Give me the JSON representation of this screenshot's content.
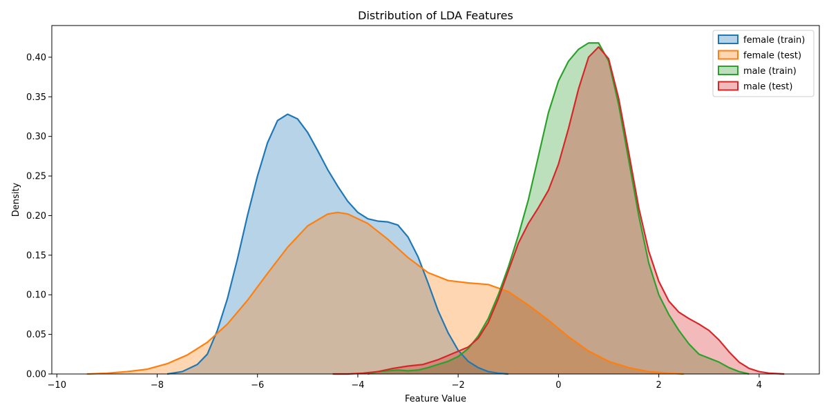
{
  "chart_data": {
    "type": "area",
    "title": "Distribution of LDA Features",
    "xlabel": "Feature Value",
    "ylabel": "Density",
    "xlim": [
      -10.1,
      5.2
    ],
    "ylim": [
      0,
      0.44
    ],
    "x_ticks": [
      -10,
      -8,
      -6,
      -4,
      -2,
      0,
      2,
      4
    ],
    "y_ticks": [
      0.0,
      0.05,
      0.1,
      0.15,
      0.2,
      0.25,
      0.3,
      0.35,
      0.4
    ],
    "grid": false,
    "legend_position": "top-right",
    "series": [
      {
        "name": "female (train)",
        "color": "#1f77b4",
        "fill_opacity": 0.32,
        "points": [
          [
            -7.8,
            0.0
          ],
          [
            -7.5,
            0.003
          ],
          [
            -7.2,
            0.012
          ],
          [
            -7.0,
            0.025
          ],
          [
            -6.8,
            0.055
          ],
          [
            -6.6,
            0.095
          ],
          [
            -6.4,
            0.145
          ],
          [
            -6.2,
            0.2
          ],
          [
            -6.0,
            0.25
          ],
          [
            -5.8,
            0.292
          ],
          [
            -5.6,
            0.32
          ],
          [
            -5.4,
            0.328
          ],
          [
            -5.2,
            0.322
          ],
          [
            -5.0,
            0.305
          ],
          [
            -4.8,
            0.282
          ],
          [
            -4.6,
            0.258
          ],
          [
            -4.4,
            0.237
          ],
          [
            -4.2,
            0.218
          ],
          [
            -4.0,
            0.204
          ],
          [
            -3.8,
            0.196
          ],
          [
            -3.6,
            0.193
          ],
          [
            -3.4,
            0.192
          ],
          [
            -3.2,
            0.188
          ],
          [
            -3.0,
            0.173
          ],
          [
            -2.8,
            0.148
          ],
          [
            -2.6,
            0.115
          ],
          [
            -2.4,
            0.08
          ],
          [
            -2.2,
            0.052
          ],
          [
            -2.0,
            0.03
          ],
          [
            -1.8,
            0.016
          ],
          [
            -1.6,
            0.008
          ],
          [
            -1.4,
            0.003
          ],
          [
            -1.2,
            0.001
          ],
          [
            -1.0,
            0.0
          ]
        ]
      },
      {
        "name": "female (test)",
        "color": "#ff7f0e",
        "fill_opacity": 0.32,
        "points": [
          [
            -9.4,
            0.0
          ],
          [
            -9.0,
            0.001
          ],
          [
            -8.6,
            0.003
          ],
          [
            -8.2,
            0.006
          ],
          [
            -7.8,
            0.013
          ],
          [
            -7.4,
            0.024
          ],
          [
            -7.0,
            0.04
          ],
          [
            -6.6,
            0.063
          ],
          [
            -6.2,
            0.093
          ],
          [
            -5.8,
            0.127
          ],
          [
            -5.4,
            0.16
          ],
          [
            -5.0,
            0.187
          ],
          [
            -4.6,
            0.202
          ],
          [
            -4.4,
            0.204
          ],
          [
            -4.2,
            0.202
          ],
          [
            -3.8,
            0.19
          ],
          [
            -3.4,
            0.17
          ],
          [
            -3.0,
            0.147
          ],
          [
            -2.6,
            0.128
          ],
          [
            -2.2,
            0.118
          ],
          [
            -1.8,
            0.115
          ],
          [
            -1.4,
            0.113
          ],
          [
            -1.0,
            0.104
          ],
          [
            -0.6,
            0.087
          ],
          [
            -0.2,
            0.068
          ],
          [
            0.2,
            0.047
          ],
          [
            0.6,
            0.029
          ],
          [
            1.0,
            0.016
          ],
          [
            1.4,
            0.008
          ],
          [
            1.8,
            0.003
          ],
          [
            2.2,
            0.001
          ],
          [
            2.5,
            0.0
          ]
        ]
      },
      {
        "name": "male (train)",
        "color": "#2ca02c",
        "fill_opacity": 0.32,
        "points": [
          [
            -3.8,
            0.0
          ],
          [
            -3.6,
            0.003
          ],
          [
            -3.4,
            0.004
          ],
          [
            -3.2,
            0.005
          ],
          [
            -3.0,
            0.004
          ],
          [
            -2.8,
            0.005
          ],
          [
            -2.6,
            0.008
          ],
          [
            -2.4,
            0.012
          ],
          [
            -2.2,
            0.016
          ],
          [
            -2.0,
            0.022
          ],
          [
            -1.8,
            0.032
          ],
          [
            -1.6,
            0.048
          ],
          [
            -1.4,
            0.07
          ],
          [
            -1.2,
            0.1
          ],
          [
            -1.0,
            0.135
          ],
          [
            -0.8,
            0.175
          ],
          [
            -0.6,
            0.22
          ],
          [
            -0.4,
            0.275
          ],
          [
            -0.2,
            0.33
          ],
          [
            0.0,
            0.37
          ],
          [
            0.2,
            0.395
          ],
          [
            0.4,
            0.41
          ],
          [
            0.6,
            0.418
          ],
          [
            0.8,
            0.418
          ],
          [
            1.0,
            0.395
          ],
          [
            1.2,
            0.34
          ],
          [
            1.4,
            0.27
          ],
          [
            1.6,
            0.2
          ],
          [
            1.8,
            0.14
          ],
          [
            2.0,
            0.1
          ],
          [
            2.2,
            0.075
          ],
          [
            2.4,
            0.055
          ],
          [
            2.6,
            0.038
          ],
          [
            2.8,
            0.025
          ],
          [
            3.0,
            0.02
          ],
          [
            3.2,
            0.015
          ],
          [
            3.4,
            0.008
          ],
          [
            3.6,
            0.003
          ],
          [
            3.8,
            0.0
          ]
        ]
      },
      {
        "name": "male (test)",
        "color": "#d62728",
        "fill_opacity": 0.32,
        "points": [
          [
            -4.5,
            0.0
          ],
          [
            -4.2,
            0.0
          ],
          [
            -3.9,
            0.001
          ],
          [
            -3.6,
            0.003
          ],
          [
            -3.3,
            0.007
          ],
          [
            -3.0,
            0.01
          ],
          [
            -2.7,
            0.012
          ],
          [
            -2.4,
            0.018
          ],
          [
            -2.1,
            0.026
          ],
          [
            -1.8,
            0.034
          ],
          [
            -1.6,
            0.045
          ],
          [
            -1.4,
            0.065
          ],
          [
            -1.2,
            0.095
          ],
          [
            -1.0,
            0.13
          ],
          [
            -0.8,
            0.165
          ],
          [
            -0.6,
            0.19
          ],
          [
            -0.4,
            0.21
          ],
          [
            -0.2,
            0.232
          ],
          [
            0.0,
            0.265
          ],
          [
            0.2,
            0.31
          ],
          [
            0.4,
            0.36
          ],
          [
            0.6,
            0.4
          ],
          [
            0.8,
            0.413
          ],
          [
            1.0,
            0.398
          ],
          [
            1.2,
            0.348
          ],
          [
            1.4,
            0.28
          ],
          [
            1.6,
            0.21
          ],
          [
            1.8,
            0.155
          ],
          [
            2.0,
            0.117
          ],
          [
            2.2,
            0.092
          ],
          [
            2.4,
            0.078
          ],
          [
            2.6,
            0.07
          ],
          [
            2.8,
            0.063
          ],
          [
            3.0,
            0.055
          ],
          [
            3.2,
            0.043
          ],
          [
            3.4,
            0.028
          ],
          [
            3.6,
            0.015
          ],
          [
            3.8,
            0.007
          ],
          [
            4.0,
            0.003
          ],
          [
            4.2,
            0.001
          ],
          [
            4.5,
            0.0
          ]
        ]
      }
    ]
  }
}
